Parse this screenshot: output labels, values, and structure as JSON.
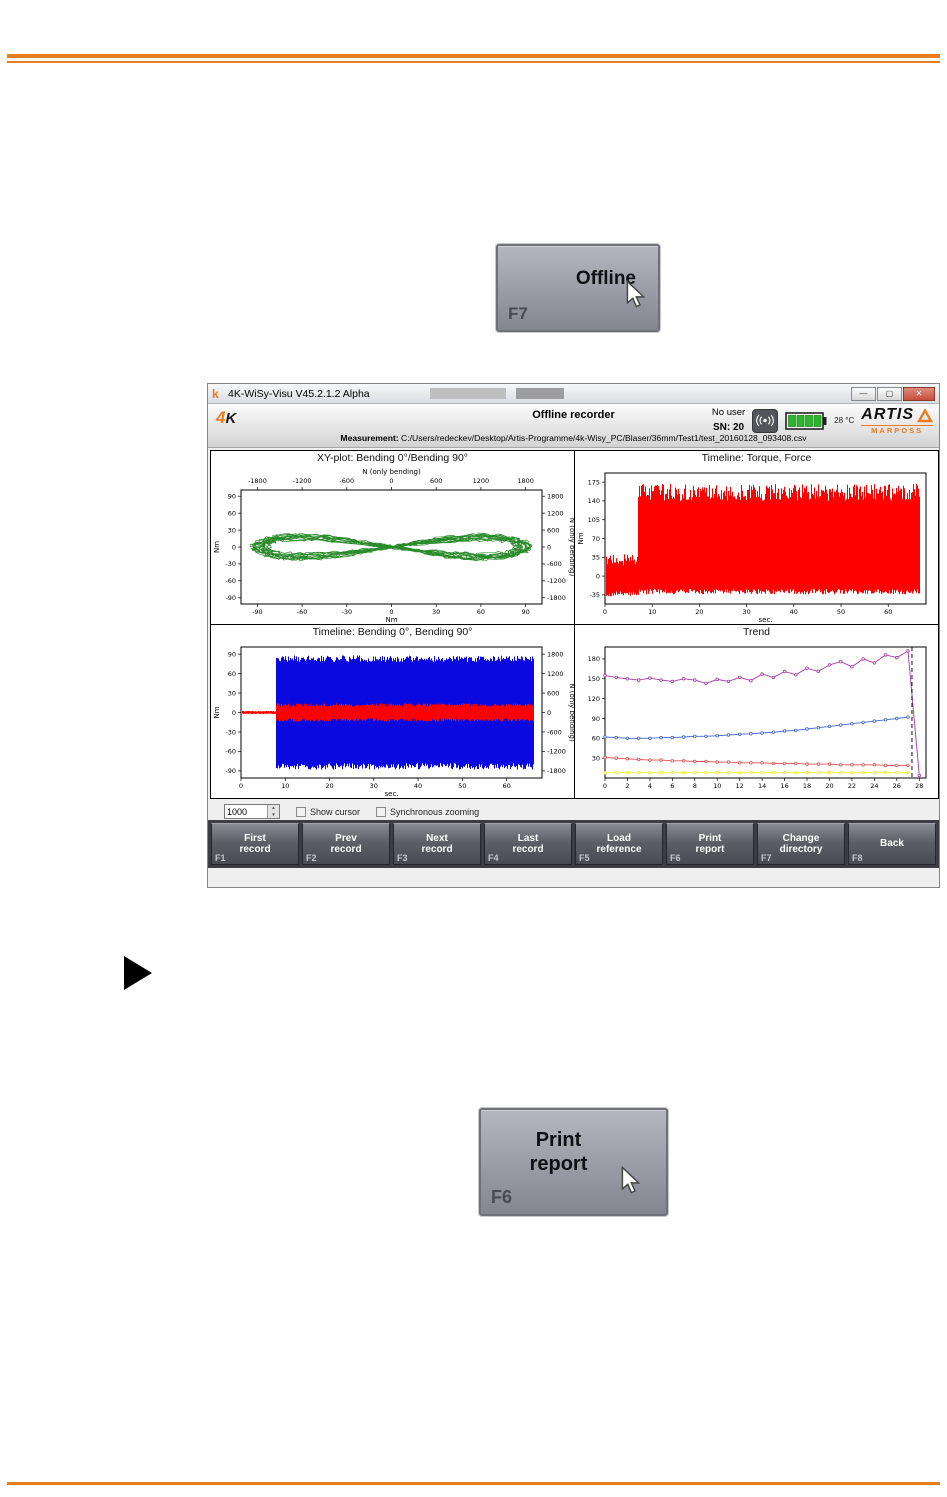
{
  "accent_color": "#e87c1e",
  "offline_button": {
    "label": "Offline",
    "fkey": "F7"
  },
  "print_button": {
    "label": "Print\nreport",
    "fkey": "F6"
  },
  "icons": {
    "app_icon_glyph": "k",
    "minimize": "—",
    "maximize": "▢",
    "close": "✕",
    "spin_up": "▲",
    "spin_down": "▼"
  },
  "window": {
    "titlebar": {
      "title": "4K-WiSy-Visu   V45.2.1.2 Alpha"
    },
    "header": {
      "logo_4": "4",
      "logo_k": "K",
      "screen_title": "Offline recorder",
      "user": "No user",
      "serial": "SN: 20",
      "temperature": "28 °C",
      "brand": "ARTIS",
      "brand_sub": "MARPOSS",
      "measurement_label": "Measurement:",
      "measurement_path": " C:/Users/redeckev/Desktop/Artis-Programme/4k-Wisy_PC/Blaser/36mm/Test1/test_20160128_093408.csv"
    },
    "controls": {
      "spin_value": "1000",
      "show_cursor_label": "Show cursor",
      "sync_zoom_label": "Synchronous zooming"
    },
    "record_buttons": [
      {
        "label": "First\nrecord",
        "fkey": "F1"
      },
      {
        "label": "Prev\nrecord",
        "fkey": "F2"
      },
      {
        "label": "Next\nrecord",
        "fkey": "F3"
      },
      {
        "label": "Last\nrecord",
        "fkey": "F4"
      },
      {
        "label": "Load\nreference",
        "fkey": "F5"
      },
      {
        "label": "Print\nreport",
        "fkey": "F6"
      },
      {
        "label": "Change\ndirectory",
        "fkey": "F7"
      },
      {
        "label": "Back",
        "fkey": "F8"
      }
    ]
  },
  "chart_data": [
    {
      "type": "scatter",
      "title": "XY-plot:  Bending 0°/Bending 90°",
      "xlabel": "Nm",
      "ylabel": "Nm",
      "x2label": "N (only bending)",
      "y2label": "N (only bending)",
      "xlim": [
        -101,
        101
      ],
      "ylim": [
        -101,
        101
      ],
      "x2lim": [
        -2020,
        2020
      ],
      "y2lim": [
        -2020,
        2020
      ],
      "xticks": [
        -90,
        -60,
        -30,
        0,
        30,
        60,
        90
      ],
      "yticks": [
        90,
        60,
        30,
        0,
        -30,
        -60,
        -90
      ],
      "x2ticks": [
        -1800,
        -1200,
        -600,
        0,
        600,
        1200,
        1800
      ],
      "y2ticks": [
        1800,
        1200,
        600,
        0,
        -600,
        -1200,
        -1800
      ],
      "series": [
        {
          "name": "bending-xy-loop",
          "kind": "lemniscate",
          "color": "#0b7a0b",
          "x_amplitude": 93,
          "y_amplitude": 21,
          "noise": 6,
          "loops": 14
        }
      ]
    },
    {
      "type": "area",
      "title": "Timeline:  Torque, Force",
      "xlabel": "sec.",
      "ylabel": "Nm",
      "xlim": [
        0,
        68
      ],
      "ylim": [
        -52,
        192
      ],
      "xticks": [
        0,
        10,
        20,
        30,
        40,
        50,
        60
      ],
      "yticks": [
        175,
        140,
        105,
        70,
        35,
        0,
        -35
      ],
      "series": [
        {
          "name": "torque",
          "kind": "envelope",
          "color": "#fe0000",
          "segments": [
            {
              "x0": 0.3,
              "x1": 7,
              "top": 42,
              "bottom": -38,
              "jitter_top": 26,
              "jitter_bottom": 10
            },
            {
              "x0": 7,
              "x1": 66.5,
              "top": 172,
              "bottom": -34,
              "jitter_top": 32,
              "jitter_bottom": 10
            }
          ]
        }
      ]
    },
    {
      "type": "area",
      "title": "Timeline:  Bending 0°, Bending 90°",
      "xlabel": "sec.",
      "ylabel": "Nm",
      "y2label": "N (only bending)",
      "xlim": [
        0,
        68
      ],
      "ylim": [
        -101,
        101
      ],
      "y2lim": [
        -2020,
        2020
      ],
      "xticks": [
        0,
        10,
        20,
        30,
        40,
        50,
        60
      ],
      "yticks": [
        90,
        60,
        30,
        0,
        -30,
        -60,
        -90
      ],
      "y2ticks": [
        1800,
        1200,
        600,
        0,
        -600,
        -1200,
        -1800
      ],
      "series": [
        {
          "name": "bending-90",
          "kind": "envelope",
          "color": "#0a0ae0",
          "segments": [
            {
              "x0": 8,
              "x1": 66,
              "top": 88,
              "bottom": -88,
              "jitter_top": 10,
              "jitter_bottom": 10
            }
          ]
        },
        {
          "name": "bending-0",
          "kind": "envelope",
          "color": "#fe0000",
          "segments": [
            {
              "x0": 0.3,
              "x1": 8,
              "top": 2.5,
              "bottom": -2.5,
              "jitter_top": 1,
              "jitter_bottom": 1
            },
            {
              "x0": 8,
              "x1": 66,
              "top": 14,
              "bottom": -14,
              "jitter_top": 5,
              "jitter_bottom": 5
            }
          ]
        }
      ]
    },
    {
      "type": "line",
      "title": "Trend",
      "xlim": [
        0,
        28.6
      ],
      "ylim": [
        0,
        198
      ],
      "xticks": [
        0,
        2,
        4,
        6,
        8,
        10,
        12,
        14,
        16,
        18,
        20,
        22,
        24,
        26,
        28
      ],
      "yticks": [
        30,
        60,
        90,
        120,
        150,
        180
      ],
      "cursor_x": 27.35,
      "x_step": 1,
      "series": [
        {
          "name": "trend-violet",
          "kind": "line",
          "color": "#a53aa5",
          "values": [
            155,
            152,
            150,
            148,
            151,
            148,
            146,
            150,
            148,
            143,
            149,
            146,
            152,
            147,
            157,
            152,
            161,
            156,
            166,
            161,
            171,
            176,
            168,
            180,
            174,
            186,
            182,
            192,
            4
          ]
        },
        {
          "name": "trend-blue",
          "kind": "line",
          "color": "#4466cc",
          "values": [
            62,
            61,
            60,
            60,
            60,
            61,
            61,
            62,
            63,
            63,
            64,
            65,
            66,
            67,
            68,
            69,
            71,
            72,
            74,
            76,
            78,
            80,
            82,
            84,
            86,
            88,
            90,
            92
          ]
        },
        {
          "name": "trend-red",
          "kind": "line",
          "color": "#e05050",
          "values": [
            31,
            30,
            29,
            28,
            27,
            27,
            26,
            26,
            25,
            25,
            24,
            24,
            23,
            23,
            23,
            22,
            22,
            22,
            21,
            21,
            21,
            20,
            20,
            20,
            20,
            19,
            19,
            19
          ]
        },
        {
          "name": "trend-yellow",
          "kind": "line",
          "color": "#eeee22",
          "values": [
            8,
            8,
            8,
            8,
            8,
            8,
            8,
            8,
            8,
            8,
            8,
            8,
            8,
            8,
            8,
            8,
            8,
            8,
            8,
            8,
            8,
            8,
            8,
            8,
            8,
            8,
            8,
            8
          ]
        }
      ]
    }
  ]
}
